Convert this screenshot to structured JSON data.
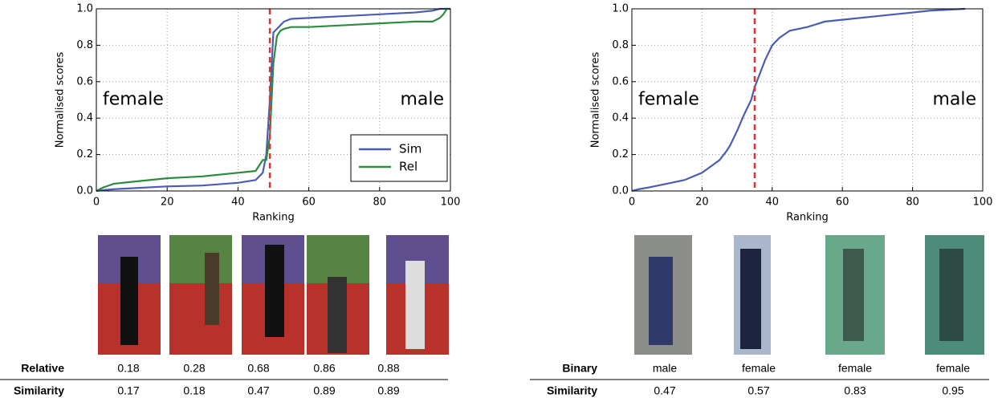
{
  "chart_data": [
    {
      "type": "line",
      "xlabel": "Ranking",
      "ylabel": "Normalised scores",
      "x": [
        0,
        2,
        5,
        10,
        15,
        20,
        30,
        40,
        45,
        47,
        48,
        49,
        50,
        51,
        52,
        53,
        55,
        60,
        70,
        80,
        90,
        95,
        97,
        98,
        99,
        100
      ],
      "series": [
        {
          "name": "Sim",
          "color": "#4a5db5",
          "values": [
            0,
            0.005,
            0.01,
            0.015,
            0.02,
            0.025,
            0.03,
            0.045,
            0.06,
            0.1,
            0.2,
            0.5,
            0.87,
            0.89,
            0.91,
            0.93,
            0.945,
            0.95,
            0.96,
            0.97,
            0.98,
            0.99,
            1.0,
            1.0,
            1.0,
            1.0
          ]
        },
        {
          "name": "Rel",
          "color": "#2e8b3e",
          "values": [
            0,
            0.02,
            0.04,
            0.05,
            0.06,
            0.07,
            0.08,
            0.1,
            0.11,
            0.17,
            0.17,
            0.3,
            0.7,
            0.85,
            0.88,
            0.89,
            0.9,
            0.9,
            0.91,
            0.92,
            0.93,
            0.93,
            0.95,
            0.97,
            1.0,
            1.0
          ]
        }
      ],
      "vline": 49,
      "vline_color": "#e8302a",
      "annotations": [
        "female",
        "male"
      ],
      "annotation_color": "#f4a07e",
      "xlim": [
        0,
        100
      ],
      "ylim": [
        0,
        1
      ],
      "xticks": [
        0,
        20,
        40,
        60,
        80,
        100
      ],
      "yticks": [
        {
          "value": 0,
          "label": "0.0"
        },
        0.2,
        0.4,
        0.6,
        0.8,
        {
          "value": 1,
          "label": "1.0"
        }
      ],
      "grid": true,
      "legend": "lower right"
    },
    {
      "type": "line",
      "xlabel": "Ranking",
      "ylabel": "Normalised scores",
      "x": [
        0,
        2,
        5,
        10,
        15,
        20,
        25,
        27,
        28,
        30,
        32,
        34,
        35,
        36,
        38,
        40,
        42,
        45,
        50,
        55,
        60,
        70,
        80,
        85,
        95
      ],
      "series": [
        {
          "color": "#4a5db5",
          "values": [
            0,
            0.01,
            0.02,
            0.04,
            0.06,
            0.1,
            0.17,
            0.22,
            0.25,
            0.33,
            0.42,
            0.5,
            0.57,
            0.62,
            0.72,
            0.8,
            0.84,
            0.88,
            0.9,
            0.93,
            0.94,
            0.96,
            0.98,
            0.99,
            1.0
          ]
        }
      ],
      "vline": 35,
      "vline_color": "#e8302a",
      "annotations": [
        "female",
        "male"
      ],
      "annotation_color": "#f4a07e",
      "xlim": [
        0,
        100
      ],
      "ylim": [
        0,
        1
      ],
      "xticks": [
        0,
        20,
        40,
        60,
        80,
        100
      ],
      "yticks": [
        {
          "value": 0,
          "label": "0.0"
        },
        0.2,
        0.4,
        0.6,
        0.8,
        {
          "value": 1,
          "label": "1.0"
        }
      ],
      "grid": true
    }
  ],
  "tables": [
    {
      "rows": [
        {
          "label": "Relative",
          "cells": [
            "0.18",
            "0.28",
            "0.68",
            "0.86",
            "0.88"
          ]
        },
        {
          "label": "Similarity",
          "cells": [
            "0.17",
            "0.18",
            "0.47",
            "0.89",
            "0.89"
          ]
        }
      ]
    },
    {
      "rows": [
        {
          "label": "Binary",
          "cells": [
            "male",
            "female",
            "female",
            "female"
          ]
        },
        {
          "label": "Similarity",
          "cells": [
            "0.47",
            "0.57",
            "0.83",
            "0.95"
          ]
        }
      ]
    }
  ]
}
